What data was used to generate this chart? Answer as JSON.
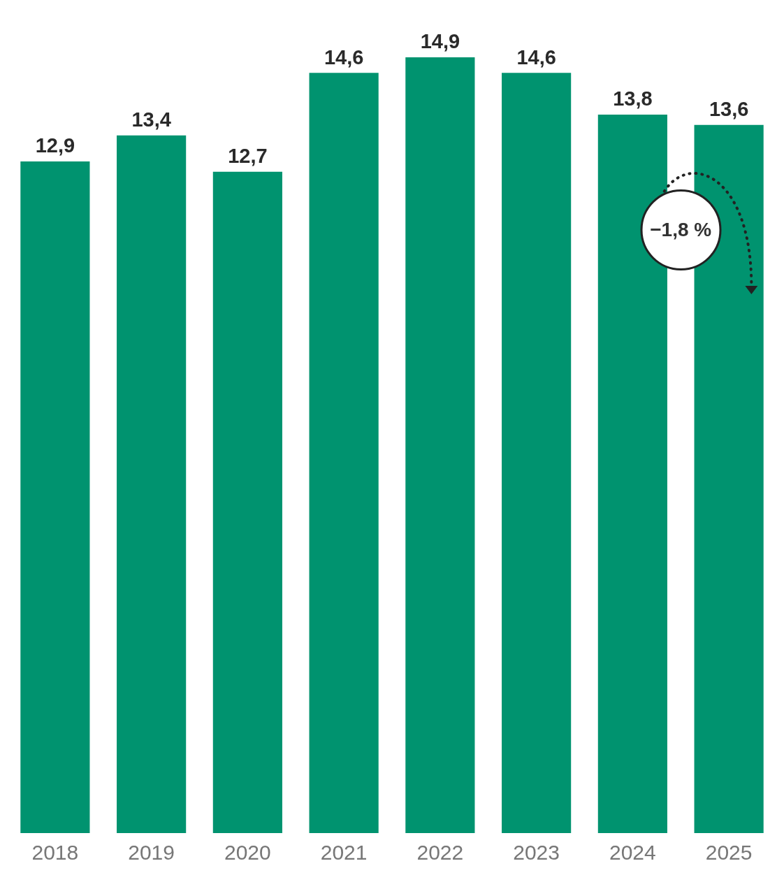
{
  "chart_data": {
    "type": "bar",
    "categories": [
      "2018",
      "2019",
      "2020",
      "2021",
      "2022",
      "2023",
      "2024",
      "2025"
    ],
    "values": [
      12.9,
      13.4,
      12.7,
      14.6,
      14.9,
      14.6,
      13.8,
      13.6
    ],
    "value_labels": [
      "12,9",
      "13,4",
      "12,7",
      "14,6",
      "14,9",
      "14,6",
      "13,8",
      "13,6"
    ],
    "color": "#00936f",
    "grid": false,
    "legend": false,
    "tick_labels": "x",
    "annotations": [
      "−1,8 %"
    ]
  }
}
